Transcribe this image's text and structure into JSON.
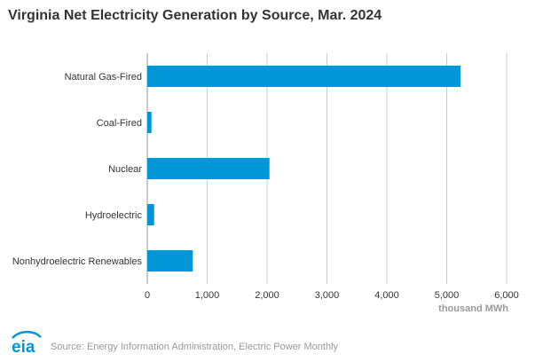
{
  "chart_data": {
    "type": "bar",
    "orientation": "horizontal",
    "title": "Virginia Net Electricity Generation by Source, Mar. 2024",
    "categories": [
      "Natural Gas-Fired",
      "Coal-Fired",
      "Nuclear",
      "Hydroelectric",
      "Nonhydroelectric Renewables"
    ],
    "values": [
      5230,
      70,
      2040,
      115,
      760
    ],
    "xlabel": "thousand MWh",
    "ylabel": "",
    "xlim": [
      0,
      6000
    ],
    "ticks": [
      "0",
      "1,000",
      "2,000",
      "3,000",
      "4,000",
      "5,000",
      "6,000"
    ],
    "grid": true,
    "bar_color": "#0096D7"
  },
  "footer": {
    "logo_text": "eia",
    "source": "Source: Energy Information Administration, Electric Power Monthly"
  },
  "colors": {
    "bar": "#0096D7",
    "grid": "#cccccc",
    "logo": "#0096D7",
    "source_text": "#999999"
  }
}
